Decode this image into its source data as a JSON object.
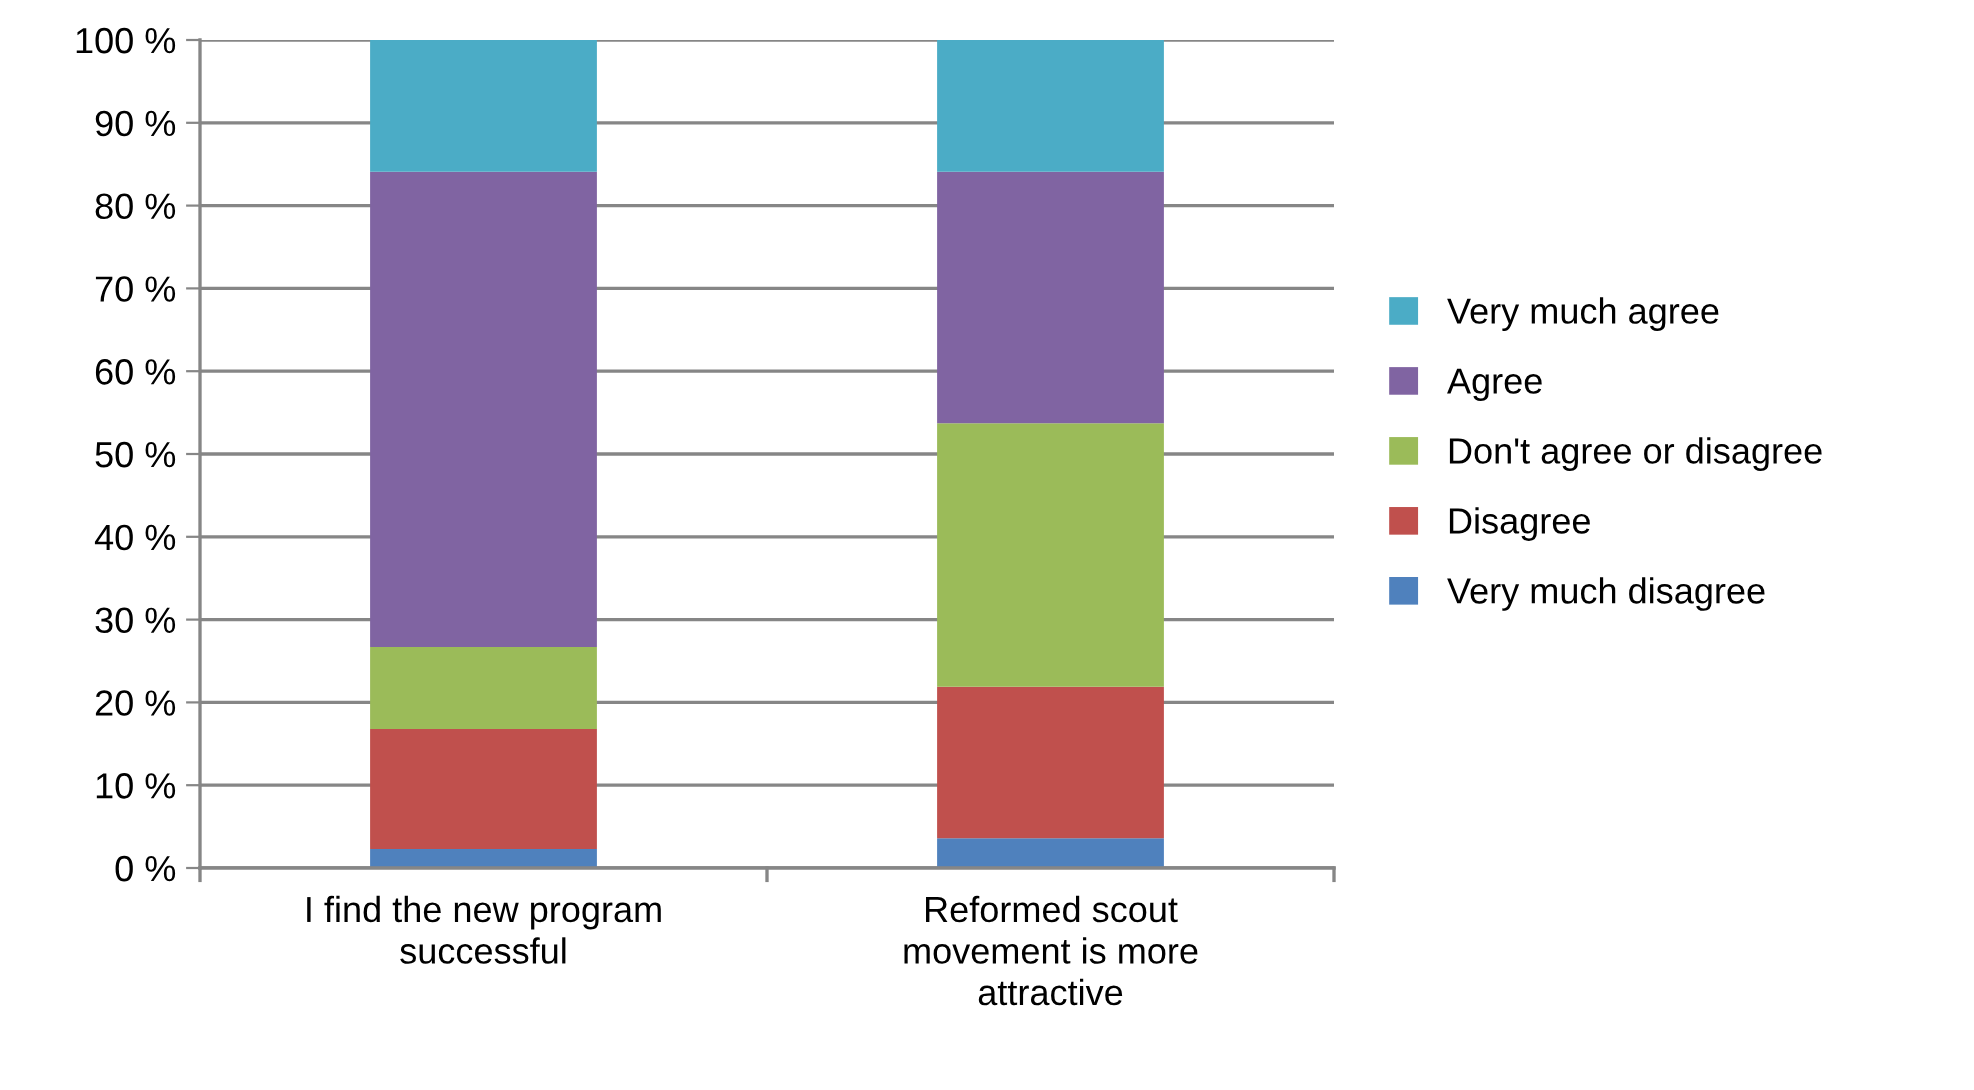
{
  "chart_data": {
    "type": "bar",
    "stacked": true,
    "categories": [
      "I find the new program\nsuccessful",
      "Reformed scout\nmovement is more\nattractive"
    ],
    "series": [
      {
        "name": "Very much disagree",
        "color": "#4f81bd",
        "values": [
          2.3,
          3.6
        ]
      },
      {
        "name": "Disagree",
        "color": "#c0504d",
        "values": [
          14.5,
          18.3
        ]
      },
      {
        "name": "Don't agree or disagree",
        "color": "#9bbb59",
        "values": [
          9.9,
          31.8
        ]
      },
      {
        "name": "Agree",
        "color": "#8064a2",
        "values": [
          57.4,
          30.4
        ]
      },
      {
        "name": "Very much agree",
        "color": "#4bacc6",
        "values": [
          15.9,
          15.9
        ]
      }
    ],
    "ylim": [
      0,
      100
    ],
    "yticks": [
      {
        "value": 0,
        "label": "0 %"
      },
      {
        "value": 10,
        "label": "10 %"
      },
      {
        "value": 20,
        "label": "20 %"
      },
      {
        "value": 30,
        "label": "30 %"
      },
      {
        "value": 40,
        "label": "40 %"
      },
      {
        "value": 50,
        "label": "50 %"
      },
      {
        "value": 60,
        "label": "60 %"
      },
      {
        "value": 70,
        "label": "70 %"
      },
      {
        "value": 80,
        "label": "80 %"
      },
      {
        "value": 90,
        "label": "90 %"
      },
      {
        "value": 100,
        "label": "100 %"
      }
    ],
    "grid": "y",
    "legend": "right"
  }
}
